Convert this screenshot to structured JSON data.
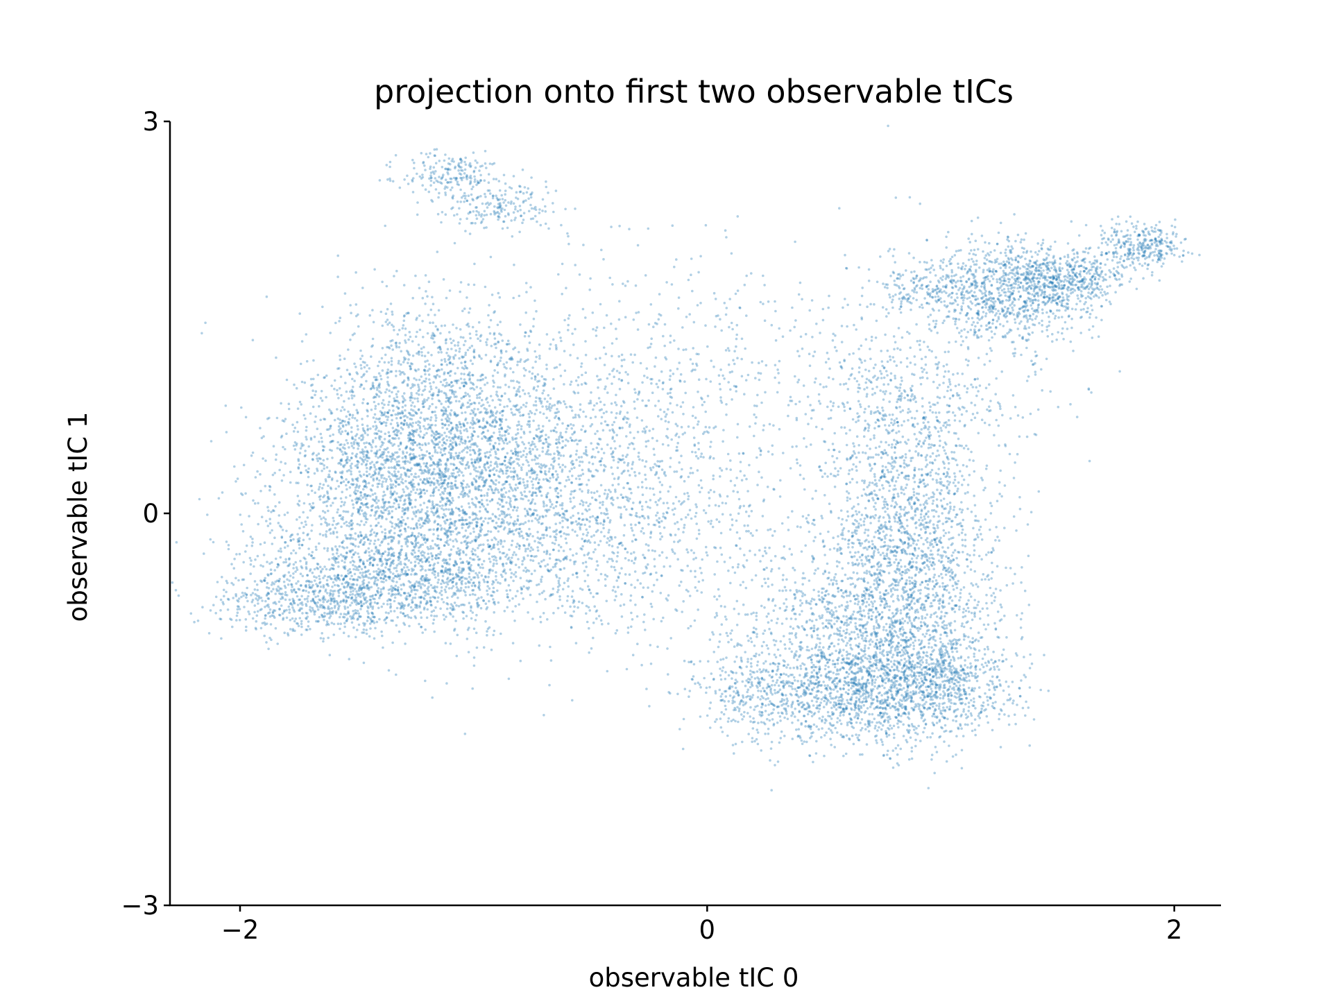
{
  "chart_data": {
    "type": "scatter",
    "title": "projection onto first two observable tICs",
    "xlabel": "observable tIC 0",
    "ylabel": "observable tIC 1",
    "xlim": [
      -2.3,
      2.2
    ],
    "ylim": [
      -3,
      3
    ],
    "xticks": [
      -2,
      0,
      2
    ],
    "xtick_labels": [
      "−2",
      "0",
      "2"
    ],
    "yticks": [
      -3,
      0,
      3
    ],
    "ytick_labels": [
      "−3",
      "0",
      "3"
    ],
    "grid": false,
    "legend": "none",
    "marker_color": "#1f77b4",
    "marker_alpha": 0.35,
    "series": [
      {
        "clusters": [
          {
            "center": [
              -1.15,
              0.8
            ],
            "spread": [
              0.25,
              0.45
            ],
            "count": 1400
          },
          {
            "center": [
              -1.25,
              0.2
            ],
            "spread": [
              0.3,
              0.35
            ],
            "count": 1100
          },
          {
            "center": [
              -1.35,
              -0.5
            ],
            "spread": [
              0.3,
              0.2
            ],
            "count": 1300
          },
          {
            "center": [
              -0.9,
              0.1
            ],
            "spread": [
              0.35,
              0.5
            ],
            "count": 1100
          },
          {
            "center": [
              -1.75,
              -0.7
            ],
            "spread": [
              0.2,
              0.12
            ],
            "count": 350
          },
          {
            "center": [
              -1.55,
              0.3
            ],
            "spread": [
              0.2,
              0.4
            ],
            "count": 350
          },
          {
            "center": [
              -0.55,
              0.5
            ],
            "spread": [
              0.4,
              0.5
            ],
            "count": 700
          },
          {
            "center": [
              -0.3,
              -0.2
            ],
            "spread": [
              0.35,
              0.4
            ],
            "count": 500
          },
          {
            "center": [
              -1.1,
              2.6
            ],
            "spread": [
              0.1,
              0.08
            ],
            "count": 180
          },
          {
            "center": [
              -0.9,
              2.35
            ],
            "spread": [
              0.12,
              0.1
            ],
            "count": 200
          },
          {
            "center": [
              0.85,
              0.3
            ],
            "spread": [
              0.18,
              0.4
            ],
            "count": 800
          },
          {
            "center": [
              0.85,
              -0.5
            ],
            "spread": [
              0.2,
              0.35
            ],
            "count": 1100
          },
          {
            "center": [
              0.75,
              -1.3
            ],
            "spread": [
              0.2,
              0.25
            ],
            "count": 1300
          },
          {
            "center": [
              0.3,
              -1.35
            ],
            "spread": [
              0.2,
              0.2
            ],
            "count": 600
          },
          {
            "center": [
              1.05,
              -1.3
            ],
            "spread": [
              0.15,
              0.2
            ],
            "count": 500
          },
          {
            "center": [
              0.55,
              -0.8
            ],
            "spread": [
              0.25,
              0.3
            ],
            "count": 500
          },
          {
            "center": [
              0.9,
              1.0
            ],
            "spread": [
              0.3,
              0.3
            ],
            "count": 350
          },
          {
            "center": [
              1.3,
              1.7
            ],
            "spread": [
              0.18,
              0.2
            ],
            "count": 900
          },
          {
            "center": [
              1.55,
              1.8
            ],
            "spread": [
              0.13,
              0.1
            ],
            "count": 400
          },
          {
            "center": [
              0.95,
              1.75
            ],
            "spread": [
              0.12,
              0.12
            ],
            "count": 200
          },
          {
            "center": [
              1.85,
              2.05
            ],
            "spread": [
              0.1,
              0.08
            ],
            "count": 300
          },
          {
            "center": [
              0.0,
              1.1
            ],
            "spread": [
              0.45,
              0.5
            ],
            "count": 350
          }
        ]
      }
    ]
  }
}
